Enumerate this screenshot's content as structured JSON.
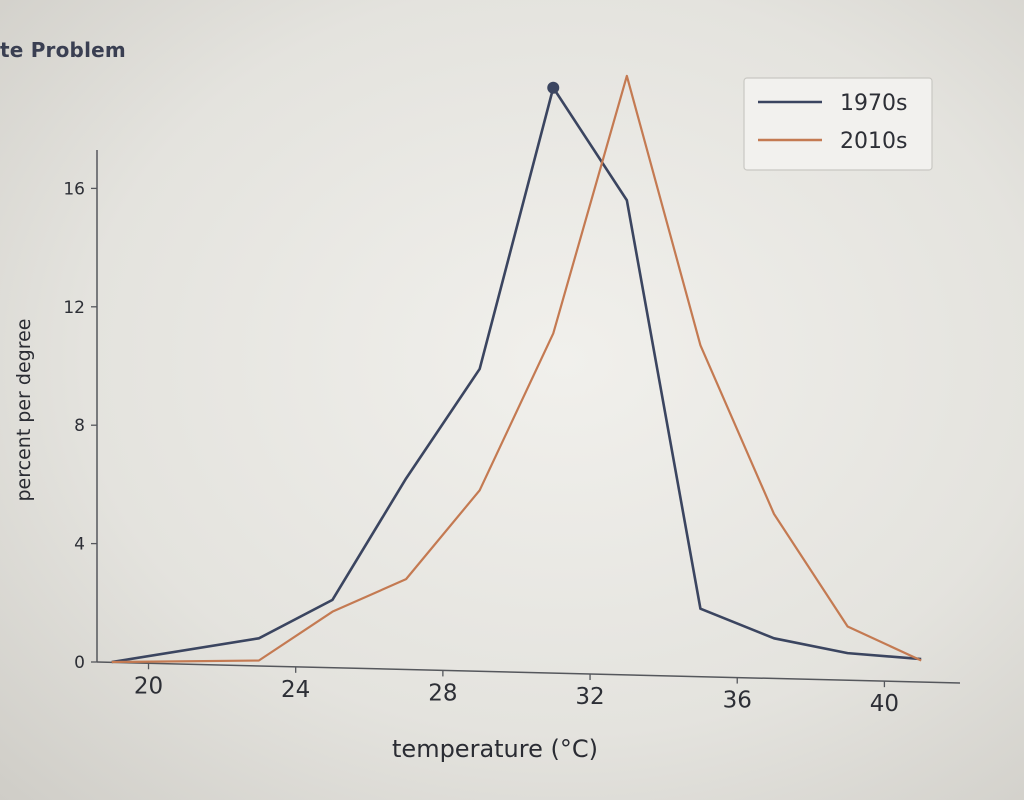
{
  "header": {
    "text": "te Problem"
  },
  "chart_data": {
    "type": "line",
    "title": "",
    "xlabel": "temperature (°C)",
    "ylabel": "percent per degree",
    "xlim": [
      18.6,
      42
    ],
    "ylim": [
      0,
      20
    ],
    "xticks": [
      20,
      24,
      28,
      32,
      36,
      40
    ],
    "yticks": [
      0,
      4,
      8,
      12,
      16
    ],
    "grid": false,
    "legend_position": "top-right",
    "series": [
      {
        "name": "1970s",
        "color": "#3b4560",
        "x": [
          19,
          23,
          25,
          27,
          29,
          31,
          33,
          35,
          37,
          39,
          41
        ],
        "y": [
          0,
          0.8,
          2.1,
          6.2,
          9.9,
          19.4,
          15.6,
          1.8,
          0.8,
          0.3,
          0.1
        ],
        "marker_index": 5
      },
      {
        "name": "2010s",
        "color": "#c47a52",
        "x": [
          19,
          23,
          25,
          27,
          29,
          31,
          33,
          35,
          37,
          39,
          41
        ],
        "y": [
          0,
          0.05,
          1.7,
          2.8,
          5.8,
          11.1,
          19.8,
          10.7,
          5.0,
          1.2,
          0.05
        ]
      }
    ]
  }
}
